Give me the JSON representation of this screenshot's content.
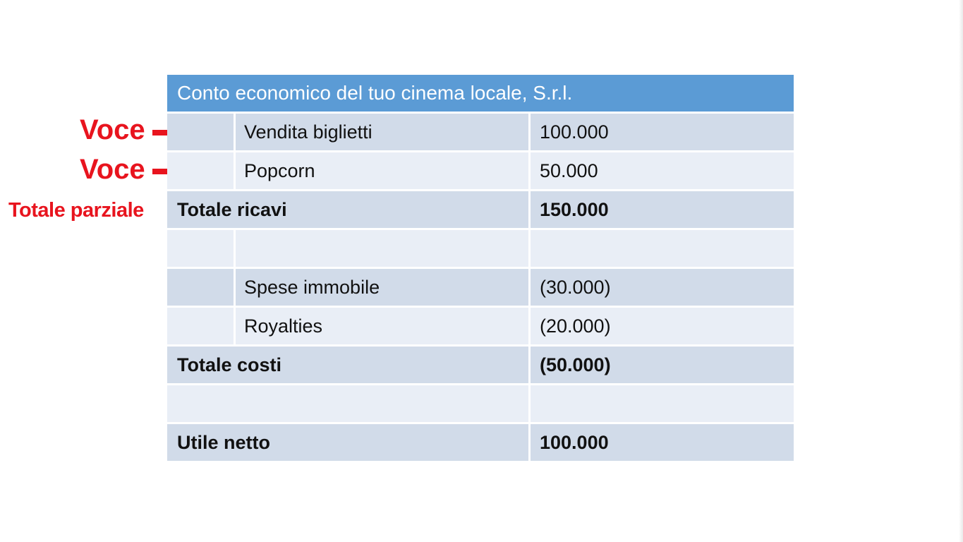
{
  "statement": {
    "title": "Conto economico del tuo cinema locale, S.r.l.",
    "rows": [
      {
        "indent": true,
        "label": "Vendita biglietti",
        "value": "100.000",
        "bold": false
      },
      {
        "indent": true,
        "label": "Popcorn",
        "value": "50.000",
        "bold": false
      },
      {
        "indent": false,
        "label": "Totale ricavi",
        "value": "150.000",
        "bold": true
      },
      {
        "indent": true,
        "label": "",
        "value": "",
        "bold": false
      },
      {
        "indent": true,
        "label": "Spese immobile",
        "value": "(30.000)",
        "bold": false
      },
      {
        "indent": true,
        "label": "Royalties",
        "value": "(20.000)",
        "bold": false
      },
      {
        "indent": false,
        "label": "Totale costi",
        "value": "(50.000)",
        "bold": true
      },
      {
        "indent": false,
        "label": "",
        "value": "",
        "bold": false
      },
      {
        "indent": false,
        "label": "Utile netto",
        "value": "100.000",
        "bold": true
      }
    ]
  },
  "annotations": {
    "voce_1": "Voce",
    "voce_2": "Voce",
    "subtotal": "Totale parziale",
    "color": "#e8141e"
  },
  "colors": {
    "header": "#5b9bd5",
    "row_dark": "#d1dbe9",
    "row_light": "#e9eef6"
  }
}
